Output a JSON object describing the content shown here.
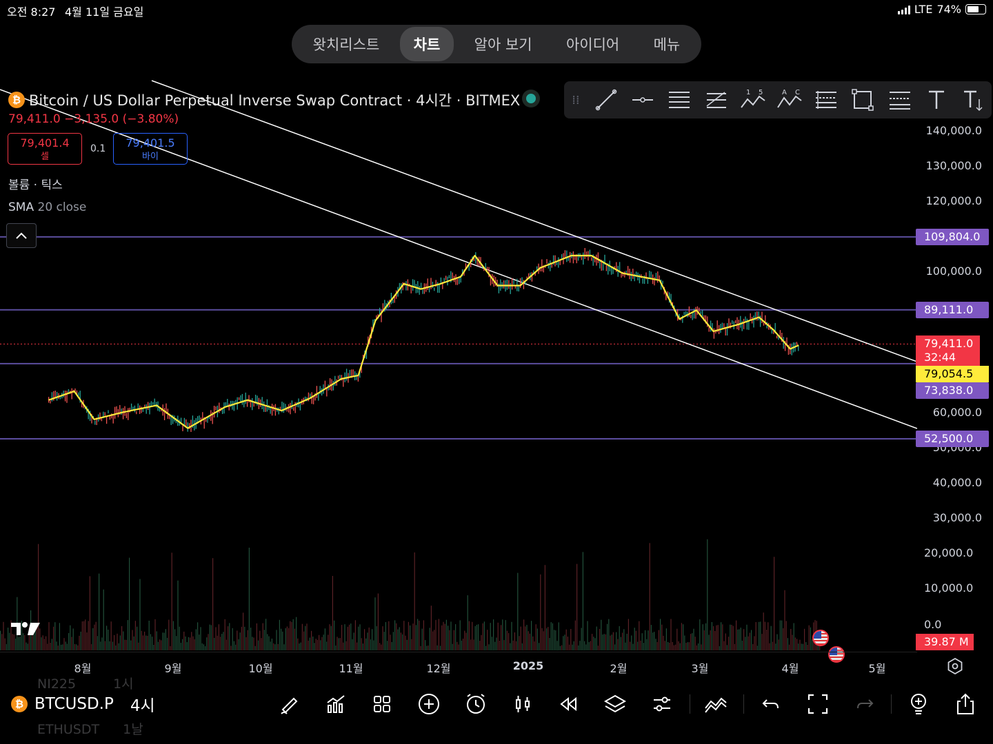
{
  "status_bar": {
    "time": "오전 8:27",
    "date": "4월 11일 금요일",
    "network": "LTE",
    "battery": "74%",
    "battery_level": 0.74
  },
  "nav_tabs": [
    {
      "label": "왓치리스트",
      "active": false
    },
    {
      "label": "차트",
      "active": true
    },
    {
      "label": "알아 보기",
      "active": false
    },
    {
      "label": "아이디어",
      "active": false
    },
    {
      "label": "메뉴",
      "active": false
    }
  ],
  "symbol": {
    "title": "Bitcoin / US Dollar Perpetual Inverse Swap Contract · 4시간 · BITMEX",
    "icon": "bitcoin-icon",
    "last": "79,411.0",
    "change": "−3,135.0 (−3.80%)",
    "sell_price": "79,401.4",
    "sell_label": "셀",
    "buy_price": "79,401.5",
    "buy_label": "바이",
    "spread": "0.1"
  },
  "indicators": {
    "volume": "볼륨 · 틱스",
    "sma_name": "SMA",
    "sma_params": "20 close"
  },
  "drawing_tools": [
    "trend-line-icon",
    "horizontal-ray-icon",
    "parallel-channel-icon",
    "fib-retracement-icon",
    "xabcd-pattern-icon",
    "abcd-pattern-icon",
    "ruler-bars-icon",
    "rectangle-icon",
    "pitchfork-icon",
    "text-icon",
    "text-note-icon"
  ],
  "price_axis": {
    "ticks": [
      "140,000.0",
      "130,000.0",
      "120,000.0",
      "100,000.0",
      "60,000.0",
      "50,000.0",
      "40,000.0",
      "30,000.0",
      "20,000.0",
      "10,000.0",
      "0.0"
    ],
    "levels": [
      {
        "value": "109,804.0",
        "style": "purple"
      },
      {
        "value": "89,111.0",
        "style": "purple"
      },
      {
        "value": "79,054.5",
        "style": "yellow"
      },
      {
        "value": "73,838.0",
        "style": "purple"
      },
      {
        "value": "52,500.0",
        "style": "purple"
      }
    ],
    "last_price": "79,411.0",
    "countdown": "32:44",
    "volume_value": "39.87 M"
  },
  "time_axis": {
    "ticks": [
      {
        "label": "8월",
        "bold": false
      },
      {
        "label": "9월",
        "bold": false
      },
      {
        "label": "10월",
        "bold": false
      },
      {
        "label": "11월",
        "bold": false
      },
      {
        "label": "12월",
        "bold": false
      },
      {
        "label": "2025",
        "bold": true
      },
      {
        "label": "2월",
        "bold": false
      },
      {
        "label": "3월",
        "bold": false
      },
      {
        "label": "4월",
        "bold": false
      },
      {
        "label": "5월",
        "bold": false
      }
    ]
  },
  "chart_data": {
    "type": "line",
    "series": [
      {
        "name": "SMA 20 close",
        "color": "#ffeb3b",
        "x": [
          "2024-07-20",
          "2024-07-29",
          "2024-08-05",
          "2024-08-15",
          "2024-08-27",
          "2024-09-07",
          "2024-09-20",
          "2024-09-28",
          "2024-10-10",
          "2024-10-20",
          "2024-10-31",
          "2024-11-06",
          "2024-11-12",
          "2024-11-22",
          "2024-11-28",
          "2024-12-05",
          "2024-12-12",
          "2024-12-17",
          "2024-12-25",
          "2025-01-02",
          "2025-01-09",
          "2025-01-20",
          "2025-01-27",
          "2025-02-07",
          "2025-02-20",
          "2025-02-27",
          "2025-03-05",
          "2025-03-11",
          "2025-03-20",
          "2025-03-27",
          "2025-04-01",
          "2025-04-07",
          "2025-04-10"
        ],
        "values": [
          63500,
          66000,
          58000,
          60000,
          62000,
          55500,
          61500,
          63500,
          60500,
          64000,
          69500,
          70500,
          86000,
          96500,
          95000,
          96500,
          98500,
          104500,
          96000,
          96000,
          101000,
          104500,
          104500,
          99500,
          97500,
          86500,
          89000,
          83000,
          85000,
          87000,
          83500,
          78000,
          79054.5
        ]
      }
    ],
    "levels": [
      109804.0,
      89111.0,
      79054.5,
      73838.0,
      52500.0
    ],
    "last_price": 79411.0,
    "price_change": -3135.0,
    "price_change_pct": -3.8,
    "ylim": [
      0,
      140000
    ],
    "grid": false
  },
  "ticker": {
    "symbol": "BTCUSD.P",
    "interval": "4시",
    "ghost_above": "NI225",
    "ghost_above_interval": "1시",
    "ghost_below": "ETHUSDT",
    "ghost_below_interval": "1날"
  },
  "bottom_tools": [
    "brush-icon",
    "chart-type-icon",
    "layouts-icon",
    "add-icon",
    "alarm-icon",
    "candles-icon",
    "replay-icon",
    "layers-icon",
    "settings-sliders-icon",
    "indicator-templates-icon",
    "undo-icon",
    "fullscreen-icon",
    "redo-icon",
    "ideas-icon",
    "share-icon"
  ]
}
